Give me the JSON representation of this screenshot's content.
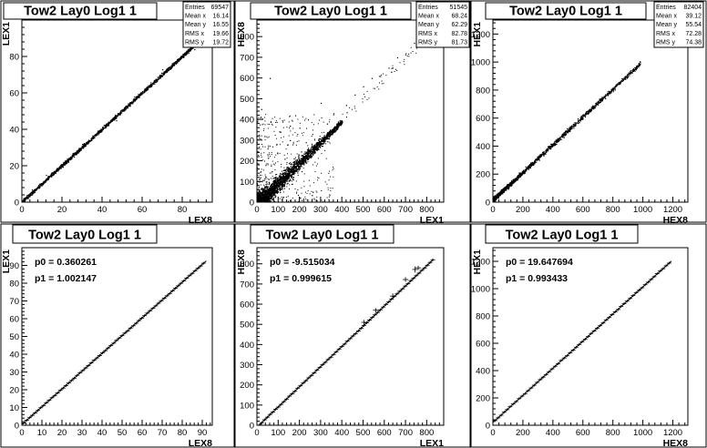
{
  "chart_data": [
    {
      "type": "scatter",
      "title": "Tow2 Lay0 Log1 1",
      "xlabel": "LEX8",
      "ylabel": "LEX1",
      "xlim": [
        0,
        95
      ],
      "ylim": [
        0,
        100
      ],
      "xticks": [
        0,
        20,
        40,
        60,
        80
      ],
      "yticks": [
        0,
        20,
        40,
        60,
        80
      ],
      "stats": [
        {
          "label": "Entries",
          "value": "69547"
        },
        {
          "label": "Mean x",
          "value": "16.14"
        },
        {
          "label": "Mean y",
          "value": "16.55"
        },
        {
          "label": "RMS x",
          "value": "19.66"
        },
        {
          "label": "RMS y",
          "value": "19.72"
        }
      ],
      "trend": {
        "slope": 1.0,
        "intercept": 0.36,
        "x_range": [
          0,
          88
        ],
        "spread": 0.6
      },
      "outliers": [
        [
          5,
          7
        ],
        [
          12,
          15
        ],
        [
          30,
          32
        ],
        [
          47,
          45
        ],
        [
          56,
          58
        ],
        [
          70,
          73
        ],
        [
          86,
          84
        ]
      ]
    },
    {
      "type": "scatter",
      "title": "Tow2 Lay0 Log1 1",
      "xlabel": "LEX1",
      "ylabel": "HEX8",
      "xlim": [
        0,
        880
      ],
      "ylim": [
        0,
        880
      ],
      "xticks": [
        0,
        100,
        200,
        300,
        400,
        500,
        600,
        700,
        800
      ],
      "yticks": [
        0,
        100,
        200,
        300,
        400,
        500,
        600,
        700,
        800
      ],
      "stats": [
        {
          "label": "Entries",
          "value": "51545"
        },
        {
          "label": "Mean x",
          "value": "68.24"
        },
        {
          "label": "Mean y",
          "value": "62.29"
        },
        {
          "label": "RMS x",
          "value": "82.78"
        },
        {
          "label": "RMS y",
          "value": "81.73"
        }
      ],
      "trend": {
        "slope": 1.0,
        "intercept": -9.5,
        "x_range": [
          0,
          400
        ],
        "spread": 12
      },
      "outliers": [
        [
          20,
          450
        ],
        [
          35,
          320
        ],
        [
          60,
          600
        ],
        [
          90,
          280
        ],
        [
          110,
          340
        ],
        [
          130,
          210
        ],
        [
          155,
          300
        ],
        [
          180,
          420
        ],
        [
          200,
          360
        ],
        [
          230,
          290
        ],
        [
          260,
          330
        ],
        [
          40,
          180
        ],
        [
          70,
          150
        ],
        [
          95,
          240
        ],
        [
          15,
          120
        ],
        [
          50,
          260
        ],
        [
          120,
          390
        ],
        [
          240,
          400
        ],
        [
          300,
          480
        ],
        [
          330,
          380
        ],
        [
          360,
          430
        ],
        [
          420,
          470
        ],
        [
          460,
          520
        ],
        [
          500,
          560
        ],
        [
          540,
          600
        ],
        [
          580,
          610
        ],
        [
          620,
          650
        ],
        [
          660,
          700
        ],
        [
          700,
          720
        ],
        [
          740,
          770
        ],
        [
          790,
          810
        ],
        [
          830,
          850
        ],
        [
          25,
          60
        ],
        [
          45,
          90
        ],
        [
          65,
          30
        ],
        [
          85,
          120
        ],
        [
          140,
          90
        ],
        [
          170,
          110
        ],
        [
          210,
          150
        ]
      ]
    },
    {
      "type": "scatter",
      "title": "Tow2 Lay0 Log1 1",
      "xlabel": "HEX8",
      "ylabel": "HEX1",
      "xlim": [
        0,
        1300
      ],
      "ylim": [
        0,
        1300
      ],
      "xticks": [
        0,
        200,
        400,
        600,
        800,
        1000,
        1200
      ],
      "yticks": [
        0,
        200,
        400,
        600,
        800,
        1000,
        1200
      ],
      "stats": [
        {
          "label": "Entries",
          "value": "82404"
        },
        {
          "label": "Mean x",
          "value": "39.12"
        },
        {
          "label": "Mean y",
          "value": "55.54"
        },
        {
          "label": "RMS x",
          "value": "72.28"
        },
        {
          "label": "RMS y",
          "value": "74.38"
        }
      ],
      "trend": {
        "slope": 0.99,
        "intercept": 19.6,
        "x_range": [
          0,
          980
        ],
        "spread": 10
      },
      "outliers": []
    },
    {
      "type": "profile",
      "title": "Tow2 Lay0 Log1 1",
      "xlabel": "LEX8",
      "ylabel": "LEX1",
      "xlim": [
        0,
        95
      ],
      "ylim": [
        0,
        100
      ],
      "xticks": [
        0,
        10,
        20,
        30,
        40,
        50,
        60,
        70,
        80,
        90
      ],
      "yticks": [
        0,
        10,
        20,
        30,
        40,
        50,
        60,
        70,
        80,
        90
      ],
      "fit": {
        "p0_label": "p0 = 0.360261",
        "p1_label": "p1 = 1.002147",
        "p0": 0.360261,
        "p1": 1.002147,
        "x_range": [
          0,
          92
        ]
      },
      "profile": {
        "x_start": 1,
        "x_end": 91,
        "step": 1.4,
        "err": 0.4
      }
    },
    {
      "type": "profile",
      "title": "Tow2 Lay0 Log1 1",
      "xlabel": "LEX1",
      "ylabel": "HEX8",
      "xlim": [
        0,
        880
      ],
      "ylim": [
        0,
        880
      ],
      "xticks": [
        0,
        100,
        200,
        300,
        400,
        500,
        600,
        700,
        800
      ],
      "yticks": [
        0,
        100,
        200,
        300,
        400,
        500,
        600,
        700,
        800
      ],
      "fit": {
        "p0_label": "p0 = -9.515034",
        "p1_label": "p1 = 0.999615",
        "p0": -9.515034,
        "p1": 0.999615,
        "x_range": [
          10,
          830
        ]
      },
      "profile": {
        "x_start": 10,
        "x_end": 830,
        "step": 13,
        "err": 4
      },
      "extra_points": [
        [
          505,
          510,
          12
        ],
        [
          560,
          570,
          10
        ],
        [
          640,
          640,
          14
        ],
        [
          700,
          722,
          12
        ],
        [
          745,
          772,
          15
        ],
        [
          760,
          780,
          10
        ]
      ]
    },
    {
      "type": "profile",
      "title": "Tow2 Lay0 Log1 1",
      "xlabel": "HEX8",
      "ylabel": "HEX1",
      "xlim": [
        0,
        1300
      ],
      "ylim": [
        0,
        1300
      ],
      "xticks": [
        0,
        200,
        400,
        600,
        800,
        1000,
        1200
      ],
      "yticks": [
        0,
        200,
        400,
        600,
        800,
        1000,
        1200
      ],
      "fit": {
        "p0_label": "p0 = 19.647694",
        "p1_label": "p1 = 0.993433",
        "p0": 19.647694,
        "p1": 0.993433,
        "x_range": [
          0,
          1190
        ]
      },
      "profile": {
        "x_start": 15,
        "x_end": 1185,
        "step": 20,
        "err": 6
      }
    }
  ]
}
